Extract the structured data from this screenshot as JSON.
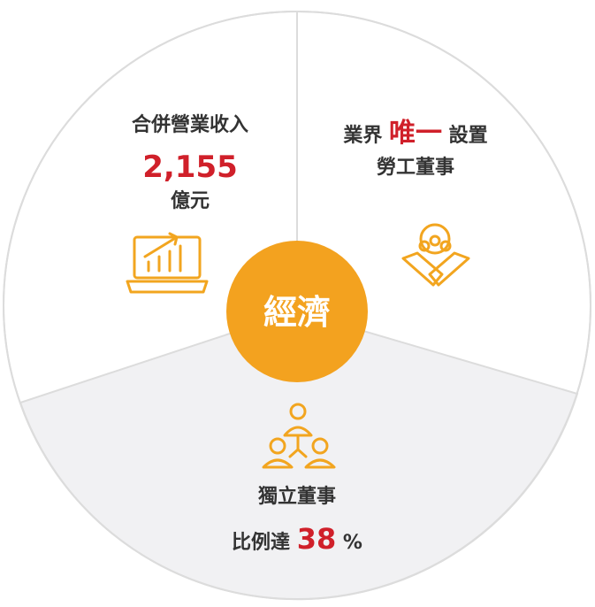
{
  "center": {
    "label": "經濟"
  },
  "segments": [
    {
      "title": "合併營業收入",
      "value": "2,155",
      "unit": "億元"
    },
    {
      "prefix": "業界",
      "highlight": "唯一",
      "suffix": "設置",
      "line2": "勞工董事"
    },
    {
      "title": "獨立董事",
      "prefix": "比例達",
      "value": "38",
      "unit": "%"
    }
  ]
}
